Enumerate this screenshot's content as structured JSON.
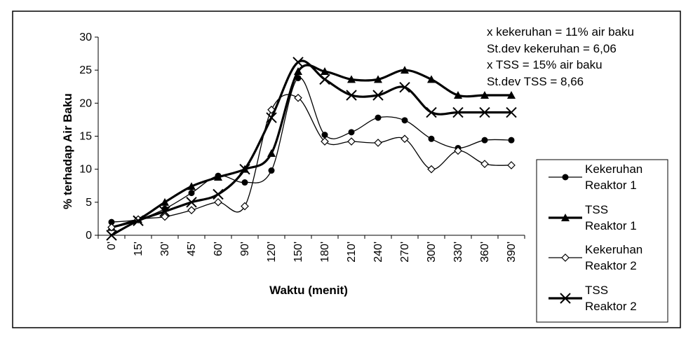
{
  "chart_data": {
    "type": "line",
    "categories": [
      "0'",
      "15'",
      "30'",
      "45'",
      "60'",
      "90'",
      "120'",
      "150'",
      "180'",
      "210'",
      "240'",
      "270'",
      "300'",
      "330'",
      "360'",
      "390'"
    ],
    "xlabel": "Waktu (menit)",
    "ylabel": "% terhadap Air Baku",
    "ylim": [
      0,
      30
    ],
    "yticks": [
      0,
      5,
      10,
      15,
      20,
      25,
      30
    ],
    "grid": false,
    "legend_position": "right",
    "annotations": [
      "x kekeruhan = 11% air baku",
      "St.dev kekeruhan = 6,06",
      "x TSS = 15% air baku",
      "St.dev TSS = 8,66"
    ],
    "series": [
      {
        "name": [
          "Kekeruhan",
          "Reaktor 1"
        ],
        "marker": "circle",
        "stroke_width": 1.3,
        "values": [
          2.0,
          2.4,
          4.0,
          6.4,
          9.0,
          8.0,
          9.8,
          23.8,
          15.2,
          15.6,
          17.8,
          17.4,
          14.6,
          13.2,
          14.4,
          14.4
        ]
      },
      {
        "name": [
          "TSS",
          "Reaktor 1"
        ],
        "marker": "triangle",
        "stroke_width": 3.2,
        "values": [
          1.2,
          2.4,
          5.0,
          7.4,
          8.8,
          10.0,
          12.4,
          24.8,
          24.8,
          23.6,
          23.6,
          25.0,
          23.6,
          21.2,
          21.2,
          21.2
        ]
      },
      {
        "name": [
          "Kekeruhan",
          "Reaktor 2"
        ],
        "marker": "diamond",
        "stroke_width": 1.3,
        "values": [
          1.2,
          2.4,
          2.8,
          3.8,
          5.0,
          4.4,
          19.0,
          20.8,
          14.2,
          14.2,
          14.0,
          14.6,
          10.0,
          12.8,
          10.8,
          10.6
        ]
      },
      {
        "name": [
          "TSS",
          "Reaktor 2"
        ],
        "marker": "x",
        "stroke_width": 3.2,
        "values": [
          0.0,
          2.2,
          3.6,
          5.0,
          6.2,
          10.0,
          17.8,
          26.2,
          23.6,
          21.2,
          21.2,
          22.4,
          18.6,
          18.6,
          18.6,
          18.6
        ]
      }
    ]
  }
}
